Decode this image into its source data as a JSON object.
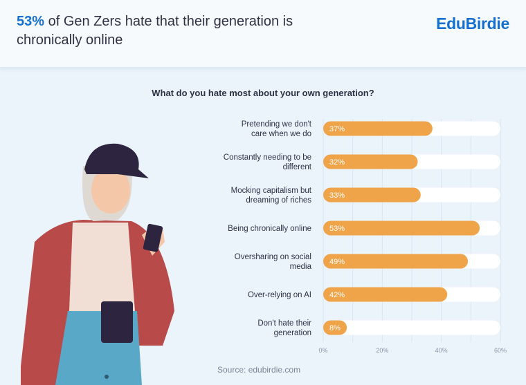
{
  "header": {
    "headline_highlight": "53%",
    "headline_rest": " of Gen Zers hate that their generation is chronically online",
    "logo": "EduBirdie"
  },
  "colors": {
    "accent": "#1470d0",
    "bar": "#f0a44a",
    "track": "#ffffff",
    "grid": "#d6e6f5"
  },
  "source": "Source: edubirdie.com",
  "chart_data": {
    "type": "bar",
    "orientation": "horizontal",
    "title": "What do you hate most about your own generation?",
    "categories": [
      [
        "Pretending we don't",
        "care when we do"
      ],
      [
        "Constantly needing to be",
        "different"
      ],
      [
        "Mocking capitalism but",
        "dreaming of riches"
      ],
      [
        "Being chronically online"
      ],
      [
        "Oversharing on social",
        "media"
      ],
      [
        "Over-relying on AI"
      ],
      [
        "Don't hate their",
        "generation"
      ]
    ],
    "values": [
      37,
      32,
      33,
      53,
      49,
      42,
      8
    ],
    "value_labels": [
      "37%",
      "32%",
      "33%",
      "53%",
      "49%",
      "42%",
      "8%"
    ],
    "xlim": [
      0,
      60
    ],
    "xticks": [
      0,
      20,
      40,
      60
    ],
    "xtick_labels": [
      "0%",
      "20%",
      "40%",
      "60%"
    ],
    "grid": true
  }
}
